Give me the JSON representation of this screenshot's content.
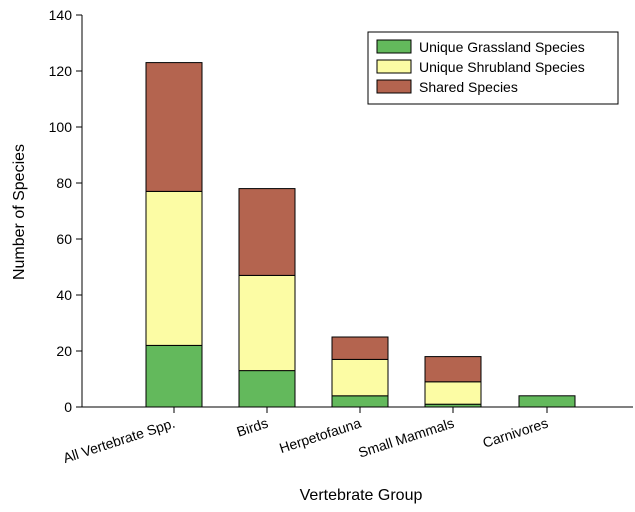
{
  "colors": {
    "grassland": "#63b95c",
    "shrubland": "#fcfca4",
    "shared": "#b4644f",
    "outline": "#000000"
  },
  "chart_data": {
    "type": "bar",
    "stacked": true,
    "categories": [
      "All Vertebrate Spp.",
      "Birds",
      "Herpetofauna",
      "Small Mammals",
      "Carnivores"
    ],
    "series": [
      {
        "name": "Unique Grassland Species",
        "values": [
          22,
          13,
          4,
          1,
          4
        ]
      },
      {
        "name": "Unique Shrubland Species",
        "values": [
          55,
          34,
          13,
          8,
          0
        ]
      },
      {
        "name": "Shared Species",
        "values": [
          46,
          31,
          8,
          9,
          0
        ]
      }
    ],
    "title": "",
    "xlabel": "Vertebrate Group",
    "ylabel": "Number of Species",
    "ylim": [
      0,
      140
    ],
    "yticks": [
      0,
      20,
      40,
      60,
      80,
      100,
      120,
      140
    ],
    "grid": false,
    "legend_position": "top-right"
  }
}
